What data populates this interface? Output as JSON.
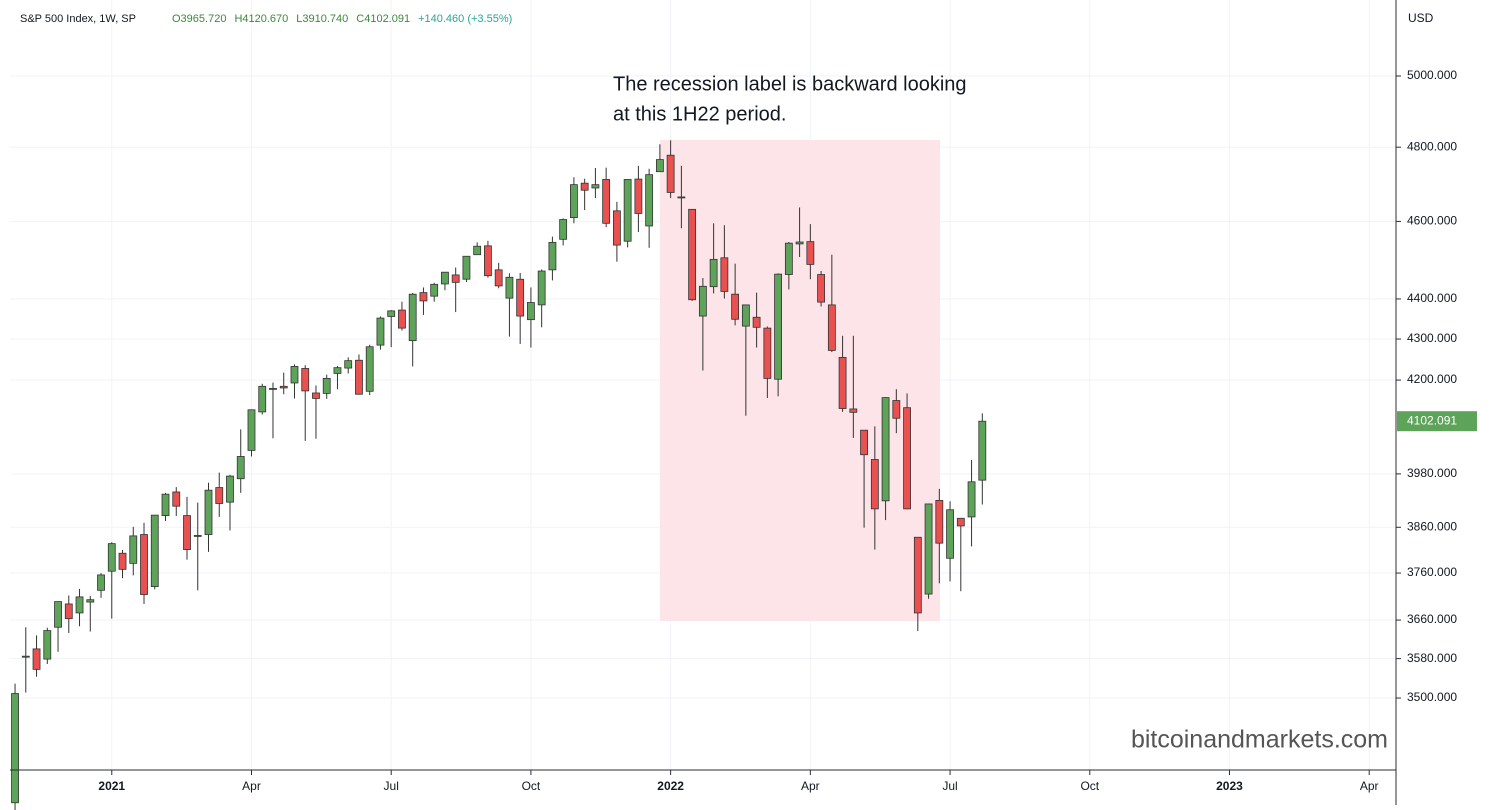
{
  "chart_data": {
    "type": "candlestick",
    "title": "S&P 500 Index, 1W, SP",
    "header_values": [
      "O3965.720",
      "H4120.670",
      "L3910.740",
      "C4102.091",
      "+140.460 (+3.55%)"
    ],
    "y_unit": "USD",
    "annotation": [
      "The recession label is backward looking",
      "at this 1H22 period."
    ],
    "watermark": "bitcoinandmarkets.com",
    "last_price_label": "4102.091",
    "log_scale": true,
    "grid": true,
    "up_color": "#5ea35a",
    "down_color": "#e8514f",
    "ylim": [
      3358.5,
      5222.7
    ],
    "yticks": [
      {
        "value": 3500,
        "label": "3500.000"
      },
      {
        "value": 3580,
        "label": "3580.000"
      },
      {
        "value": 3660,
        "label": "3660.000"
      },
      {
        "value": 3760,
        "label": "3760.000"
      },
      {
        "value": 3860,
        "label": "3860.000"
      },
      {
        "value": 3980,
        "label": "3980.000"
      },
      {
        "value": 4200,
        "label": "4200.000"
      },
      {
        "value": 4300,
        "label": "4300.000"
      },
      {
        "value": 4400,
        "label": "4400.000"
      },
      {
        "value": 4600,
        "label": "4600.000"
      },
      {
        "value": 4800,
        "label": "4800.000"
      },
      {
        "value": 5000,
        "label": "5000.000"
      }
    ],
    "xlim": [
      -1.4,
      128.4
    ],
    "xticks": [
      {
        "value": 9,
        "label": "2021"
      },
      {
        "value": 22,
        "label": "Apr"
      },
      {
        "value": 35,
        "label": "Jul"
      },
      {
        "value": 48,
        "label": "Oct"
      },
      {
        "value": 61,
        "label": "2022"
      },
      {
        "value": 74,
        "label": "Apr"
      },
      {
        "value": 87,
        "label": "Jul"
      },
      {
        "value": 100,
        "label": "Oct"
      },
      {
        "value": 113,
        "label": "2023"
      },
      {
        "value": 126,
        "label": "Apr"
      }
    ],
    "categories": [
      null,
      null,
      null,
      null,
      null,
      null,
      null,
      null,
      null,
      null,
      null,
      null,
      null,
      null,
      null,
      null,
      null,
      null,
      null,
      null,
      null,
      null,
      null,
      null,
      null,
      null,
      null,
      null,
      null,
      null,
      null,
      null,
      null,
      null,
      null,
      null,
      null,
      null,
      null,
      null,
      null,
      null,
      null,
      null,
      null,
      null,
      null,
      null,
      null,
      null,
      null,
      null,
      null,
      null,
      null,
      null,
      null,
      null,
      null,
      null,
      null,
      null,
      null,
      null,
      null,
      null,
      null,
      null,
      null,
      null,
      null,
      null,
      null,
      null,
      null,
      null,
      null,
      null,
      null,
      null,
      null,
      null,
      null,
      null,
      null,
      null,
      null,
      null,
      null,
      null,
      null
    ],
    "open": [
      3296,
      3584,
      3600,
      3579,
      3645,
      3694,
      3675,
      3698,
      3723,
      3764,
      3803,
      3781,
      3844,
      3731,
      3886,
      3939,
      3886,
      3842,
      3844,
      3949,
      3916,
      3969,
      4034,
      4124,
      4179,
      4185,
      4193,
      4228,
      4169,
      4168,
      4216,
      4229,
      4248,
      4173,
      4285,
      4356,
      4372,
      4296,
      4416,
      4407,
      4438,
      4461,
      4450,
      4513,
      4536,
      4474,
      4402,
      4450,
      4348,
      4385,
      4474,
      4553,
      4610,
      4702,
      4689,
      4712,
      4628,
      4548,
      4713,
      4588,
      4733,
      4778,
      4665,
      4632,
      4357,
      4431,
      4505,
      4412,
      4332,
      4354,
      4327,
      4202,
      4462,
      4541,
      4547,
      4462,
      4385,
      4255,
      4131,
      4081,
      4013,
      3919,
      4151,
      4134,
      3838,
      3715,
      3920,
      3792,
      3880,
      3883,
      3965.72
    ],
    "high": [
      3529,
      3645,
      3628,
      3644,
      3699,
      3712,
      3726,
      3711,
      3760,
      3827,
      3810,
      3861,
      3870,
      3887,
      3937,
      3950,
      3928,
      3915,
      3960,
      3983,
      3978,
      4083,
      4130,
      4191,
      4194,
      4218,
      4238,
      4236,
      4187,
      4213,
      4234,
      4255,
      4262,
      4286,
      4356,
      4372,
      4393,
      4415,
      4429,
      4441,
      4461,
      4480,
      4501,
      4545,
      4549,
      4492,
      4465,
      4466,
      4429,
      4475,
      4560,
      4608,
      4718,
      4714,
      4743,
      4744,
      4652,
      4713,
      4749,
      4741,
      4808,
      4819,
      4749,
      4632,
      4453,
      4595,
      4590,
      4490,
      4385,
      4416,
      4331,
      4465,
      4546,
      4637,
      4593,
      4471,
      4513,
      4308,
      4308,
      4081,
      4090,
      4159,
      4178,
      4168,
      3838,
      3913,
      3946,
      3918,
      3880,
      4012,
      4120.67
    ],
    "low": [
      3279,
      3511,
      3543,
      3569,
      3594,
      3633,
      3647,
      3636,
      3707,
      3663,
      3749,
      3755,
      3694,
      3725,
      3874,
      3885,
      3789,
      3723,
      3806,
      3883,
      3853,
      3937,
      4020,
      4118,
      4062,
      4166,
      4156,
      4056,
      4061,
      4155,
      4178,
      4216,
      4165,
      4164,
      4274,
      4280,
      4321,
      4233,
      4360,
      4393,
      4422,
      4367,
      4443,
      4513,
      4454,
      4427,
      4306,
      4288,
      4279,
      4329,
      4447,
      4537,
      4595,
      4630,
      4662,
      4585,
      4495,
      4532,
      4572,
      4531,
      4733,
      4662,
      4582,
      4395,
      4223,
      4414,
      4401,
      4334,
      4115,
      4279,
      4157,
      4161,
      4424,
      4507,
      4450,
      4381,
      4268,
      4124,
      4063,
      3859,
      3811,
      3876,
      4074,
      3900,
      3637,
      3705,
      3738,
      3742,
      3721,
      3818,
      3910.74
    ],
    "close": [
      3509,
      3585,
      3558,
      3638,
      3699,
      3663,
      3709,
      3703,
      3756,
      3824,
      3768,
      3841,
      3714,
      3887,
      3934,
      3907,
      3811,
      3842,
      3943,
      3913,
      3975,
      4020,
      4129,
      4185,
      4180,
      4181,
      4233,
      4174,
      4156,
      4204,
      4230,
      4247,
      4166,
      4281,
      4352,
      4370,
      4327,
      4412,
      4395,
      4437,
      4468,
      4442,
      4509,
      4535,
      4459,
      4433,
      4455,
      4357,
      4391,
      4471,
      4545,
      4605,
      4698,
      4683,
      4698,
      4595,
      4538,
      4712,
      4621,
      4725,
      4766,
      4677,
      4663,
      4398,
      4432,
      4501,
      4419,
      4349,
      4385,
      4329,
      4204,
      4463,
      4543,
      4546,
      4488,
      4392,
      4272,
      4132,
      4123,
      4024,
      3901,
      4158,
      4109,
      3901,
      3675,
      3912,
      3825,
      3899,
      3863,
      3962,
      4102.091
    ]
  }
}
